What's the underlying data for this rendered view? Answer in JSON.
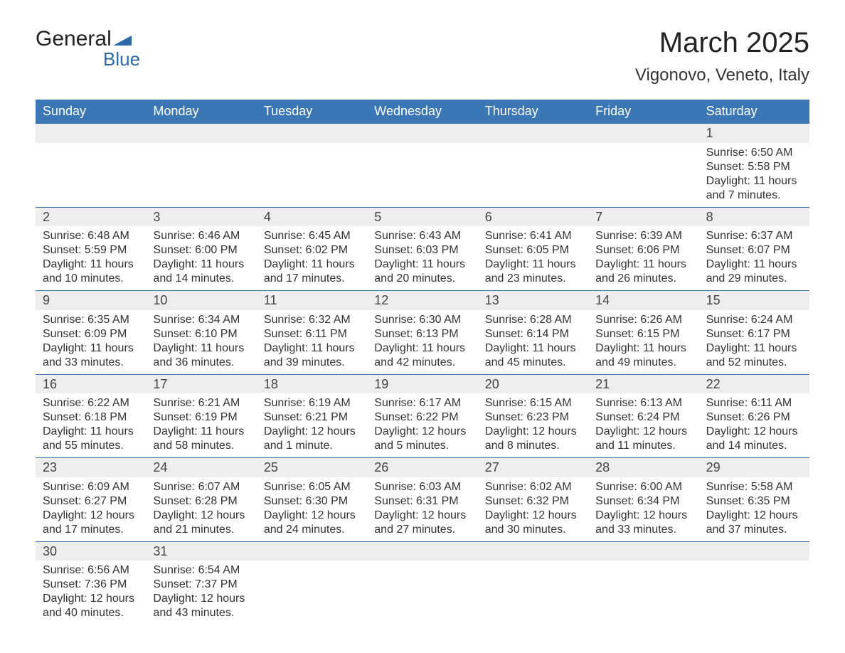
{
  "brand": {
    "name_part1": "General",
    "name_part2": "Blue",
    "color_dark": "#222222",
    "color_blue": "#2f6aa8"
  },
  "title": {
    "month": "March 2025",
    "location": "Vigonovo, Veneto, Italy",
    "month_fontsize": 40,
    "location_fontsize": 24
  },
  "colors": {
    "header_bg": "#3b77b5",
    "header_text": "#ffffff",
    "daynum_bg": "#eeeeee",
    "daynum_border": "#3b77b5",
    "body_text": "#333333",
    "page_bg": "#ffffff"
  },
  "weekdays": [
    "Sunday",
    "Monday",
    "Tuesday",
    "Wednesday",
    "Thursday",
    "Friday",
    "Saturday"
  ],
  "weeks": [
    [
      null,
      null,
      null,
      null,
      null,
      null,
      {
        "num": "1",
        "sunrise": "Sunrise: 6:50 AM",
        "sunset": "Sunset: 5:58 PM",
        "daylight1": "Daylight: 11 hours",
        "daylight2": "and 7 minutes."
      }
    ],
    [
      {
        "num": "2",
        "sunrise": "Sunrise: 6:48 AM",
        "sunset": "Sunset: 5:59 PM",
        "daylight1": "Daylight: 11 hours",
        "daylight2": "and 10 minutes."
      },
      {
        "num": "3",
        "sunrise": "Sunrise: 6:46 AM",
        "sunset": "Sunset: 6:00 PM",
        "daylight1": "Daylight: 11 hours",
        "daylight2": "and 14 minutes."
      },
      {
        "num": "4",
        "sunrise": "Sunrise: 6:45 AM",
        "sunset": "Sunset: 6:02 PM",
        "daylight1": "Daylight: 11 hours",
        "daylight2": "and 17 minutes."
      },
      {
        "num": "5",
        "sunrise": "Sunrise: 6:43 AM",
        "sunset": "Sunset: 6:03 PM",
        "daylight1": "Daylight: 11 hours",
        "daylight2": "and 20 minutes."
      },
      {
        "num": "6",
        "sunrise": "Sunrise: 6:41 AM",
        "sunset": "Sunset: 6:05 PM",
        "daylight1": "Daylight: 11 hours",
        "daylight2": "and 23 minutes."
      },
      {
        "num": "7",
        "sunrise": "Sunrise: 6:39 AM",
        "sunset": "Sunset: 6:06 PM",
        "daylight1": "Daylight: 11 hours",
        "daylight2": "and 26 minutes."
      },
      {
        "num": "8",
        "sunrise": "Sunrise: 6:37 AM",
        "sunset": "Sunset: 6:07 PM",
        "daylight1": "Daylight: 11 hours",
        "daylight2": "and 29 minutes."
      }
    ],
    [
      {
        "num": "9",
        "sunrise": "Sunrise: 6:35 AM",
        "sunset": "Sunset: 6:09 PM",
        "daylight1": "Daylight: 11 hours",
        "daylight2": "and 33 minutes."
      },
      {
        "num": "10",
        "sunrise": "Sunrise: 6:34 AM",
        "sunset": "Sunset: 6:10 PM",
        "daylight1": "Daylight: 11 hours",
        "daylight2": "and 36 minutes."
      },
      {
        "num": "11",
        "sunrise": "Sunrise: 6:32 AM",
        "sunset": "Sunset: 6:11 PM",
        "daylight1": "Daylight: 11 hours",
        "daylight2": "and 39 minutes."
      },
      {
        "num": "12",
        "sunrise": "Sunrise: 6:30 AM",
        "sunset": "Sunset: 6:13 PM",
        "daylight1": "Daylight: 11 hours",
        "daylight2": "and 42 minutes."
      },
      {
        "num": "13",
        "sunrise": "Sunrise: 6:28 AM",
        "sunset": "Sunset: 6:14 PM",
        "daylight1": "Daylight: 11 hours",
        "daylight2": "and 45 minutes."
      },
      {
        "num": "14",
        "sunrise": "Sunrise: 6:26 AM",
        "sunset": "Sunset: 6:15 PM",
        "daylight1": "Daylight: 11 hours",
        "daylight2": "and 49 minutes."
      },
      {
        "num": "15",
        "sunrise": "Sunrise: 6:24 AM",
        "sunset": "Sunset: 6:17 PM",
        "daylight1": "Daylight: 11 hours",
        "daylight2": "and 52 minutes."
      }
    ],
    [
      {
        "num": "16",
        "sunrise": "Sunrise: 6:22 AM",
        "sunset": "Sunset: 6:18 PM",
        "daylight1": "Daylight: 11 hours",
        "daylight2": "and 55 minutes."
      },
      {
        "num": "17",
        "sunrise": "Sunrise: 6:21 AM",
        "sunset": "Sunset: 6:19 PM",
        "daylight1": "Daylight: 11 hours",
        "daylight2": "and 58 minutes."
      },
      {
        "num": "18",
        "sunrise": "Sunrise: 6:19 AM",
        "sunset": "Sunset: 6:21 PM",
        "daylight1": "Daylight: 12 hours",
        "daylight2": "and 1 minute."
      },
      {
        "num": "19",
        "sunrise": "Sunrise: 6:17 AM",
        "sunset": "Sunset: 6:22 PM",
        "daylight1": "Daylight: 12 hours",
        "daylight2": "and 5 minutes."
      },
      {
        "num": "20",
        "sunrise": "Sunrise: 6:15 AM",
        "sunset": "Sunset: 6:23 PM",
        "daylight1": "Daylight: 12 hours",
        "daylight2": "and 8 minutes."
      },
      {
        "num": "21",
        "sunrise": "Sunrise: 6:13 AM",
        "sunset": "Sunset: 6:24 PM",
        "daylight1": "Daylight: 12 hours",
        "daylight2": "and 11 minutes."
      },
      {
        "num": "22",
        "sunrise": "Sunrise: 6:11 AM",
        "sunset": "Sunset: 6:26 PM",
        "daylight1": "Daylight: 12 hours",
        "daylight2": "and 14 minutes."
      }
    ],
    [
      {
        "num": "23",
        "sunrise": "Sunrise: 6:09 AM",
        "sunset": "Sunset: 6:27 PM",
        "daylight1": "Daylight: 12 hours",
        "daylight2": "and 17 minutes."
      },
      {
        "num": "24",
        "sunrise": "Sunrise: 6:07 AM",
        "sunset": "Sunset: 6:28 PM",
        "daylight1": "Daylight: 12 hours",
        "daylight2": "and 21 minutes."
      },
      {
        "num": "25",
        "sunrise": "Sunrise: 6:05 AM",
        "sunset": "Sunset: 6:30 PM",
        "daylight1": "Daylight: 12 hours",
        "daylight2": "and 24 minutes."
      },
      {
        "num": "26",
        "sunrise": "Sunrise: 6:03 AM",
        "sunset": "Sunset: 6:31 PM",
        "daylight1": "Daylight: 12 hours",
        "daylight2": "and 27 minutes."
      },
      {
        "num": "27",
        "sunrise": "Sunrise: 6:02 AM",
        "sunset": "Sunset: 6:32 PM",
        "daylight1": "Daylight: 12 hours",
        "daylight2": "and 30 minutes."
      },
      {
        "num": "28",
        "sunrise": "Sunrise: 6:00 AM",
        "sunset": "Sunset: 6:34 PM",
        "daylight1": "Daylight: 12 hours",
        "daylight2": "and 33 minutes."
      },
      {
        "num": "29",
        "sunrise": "Sunrise: 5:58 AM",
        "sunset": "Sunset: 6:35 PM",
        "daylight1": "Daylight: 12 hours",
        "daylight2": "and 37 minutes."
      }
    ],
    [
      {
        "num": "30",
        "sunrise": "Sunrise: 6:56 AM",
        "sunset": "Sunset: 7:36 PM",
        "daylight1": "Daylight: 12 hours",
        "daylight2": "and 40 minutes."
      },
      {
        "num": "31",
        "sunrise": "Sunrise: 6:54 AM",
        "sunset": "Sunset: 7:37 PM",
        "daylight1": "Daylight: 12 hours",
        "daylight2": "and 43 minutes."
      },
      null,
      null,
      null,
      null,
      null
    ]
  ]
}
